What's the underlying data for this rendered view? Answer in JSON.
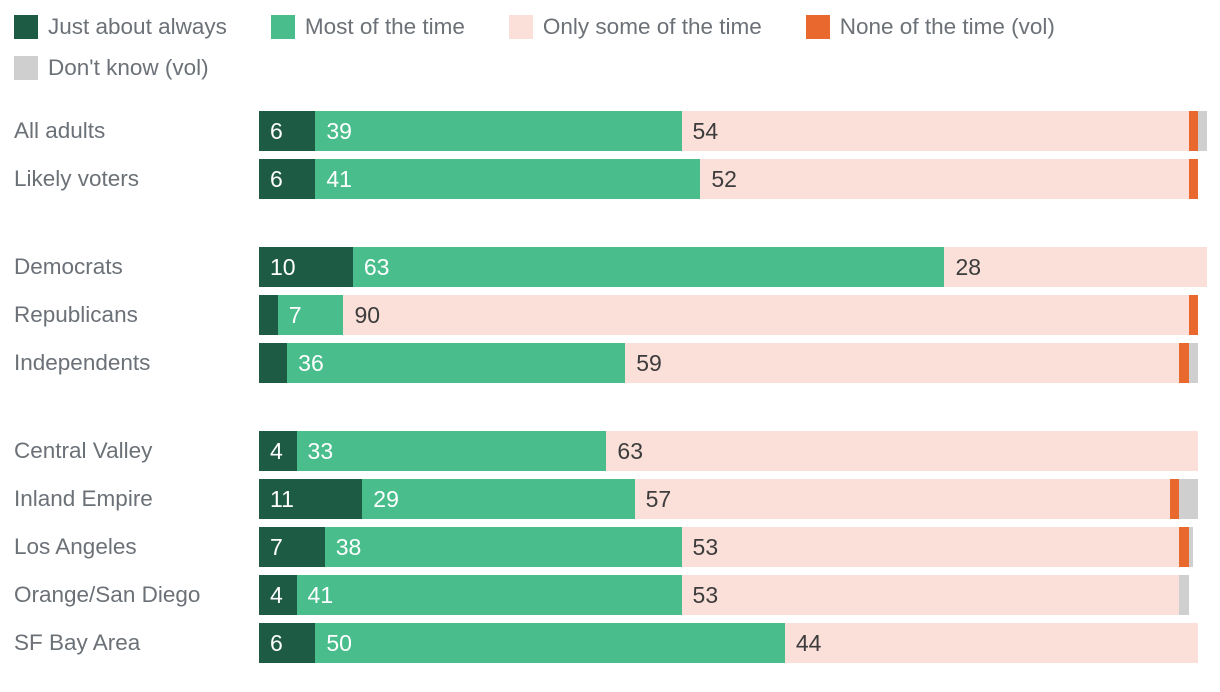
{
  "colors": {
    "always": "#1d5b44",
    "most": "#49bd8b",
    "some": "#fae0d8",
    "none": "#e8682e",
    "dk": "#cfcfcf",
    "text_muted": "#6b7177",
    "value_on_green": "#ffffff",
    "value_on_pink": "#3c3c3c"
  },
  "legend": {
    "items": [
      {
        "key": "always",
        "label": "Just about always"
      },
      {
        "key": "most",
        "label": "Most of the time"
      },
      {
        "key": "some",
        "label": "Only some of the time"
      },
      {
        "key": "none",
        "label": "None of the time (vol)"
      },
      {
        "key": "dk",
        "label": "Don't know (vol)"
      }
    ]
  },
  "chart_data": {
    "type": "bar",
    "orientation": "horizontal",
    "stacked": true,
    "unit": "percent",
    "xlim": [
      0,
      101
    ],
    "grid": false,
    "legend_position": "top",
    "series_keys": [
      "always",
      "most",
      "some",
      "none",
      "dk"
    ],
    "series_names": [
      "Just about always",
      "Most of the time",
      "Only some of the time",
      "None of the time (vol)",
      "Don't know (vol)"
    ],
    "groups": [
      {
        "name": "overall",
        "rows": [
          {
            "label": "All adults",
            "values": [
              6,
              39,
              54,
              1,
              1
            ],
            "value_labels": [
              "6",
              "39",
              "54",
              "",
              ""
            ]
          },
          {
            "label": "Likely voters",
            "values": [
              6,
              41,
              52,
              1,
              0
            ],
            "value_labels": [
              "6",
              "41",
              "52",
              "",
              ""
            ]
          }
        ]
      },
      {
        "name": "party",
        "rows": [
          {
            "label": "Democrats",
            "values": [
              10,
              63,
              28,
              0,
              0
            ],
            "value_labels": [
              "10",
              "63",
              "28",
              "",
              ""
            ]
          },
          {
            "label": "Republicans",
            "values": [
              2,
              7,
              90,
              1,
              0
            ],
            "value_labels": [
              "",
              "7",
              "90",
              "",
              ""
            ]
          },
          {
            "label": "Independents",
            "values": [
              3,
              36,
              59,
              1,
              1
            ],
            "value_labels": [
              "",
              "36",
              "59",
              "",
              ""
            ]
          }
        ]
      },
      {
        "name": "region",
        "rows": [
          {
            "label": "Central Valley",
            "values": [
              4,
              33,
              63,
              0,
              0
            ],
            "value_labels": [
              "4",
              "33",
              "63",
              "",
              ""
            ]
          },
          {
            "label": "Inland Empire",
            "values": [
              11,
              29,
              57,
              1,
              2
            ],
            "value_labels": [
              "11",
              "29",
              "57",
              "",
              ""
            ]
          },
          {
            "label": "Los Angeles",
            "values": [
              7,
              38,
              53,
              1,
              0.5
            ],
            "value_labels": [
              "7",
              "38",
              "53",
              "",
              ""
            ]
          },
          {
            "label": "Orange/San Diego",
            "values": [
              4,
              41,
              53,
              0,
              1
            ],
            "value_labels": [
              "4",
              "41",
              "53",
              "",
              ""
            ]
          },
          {
            "label": "SF Bay Area",
            "values": [
              6,
              50,
              44,
              0,
              0
            ],
            "value_labels": [
              "6",
              "50",
              "44",
              "",
              ""
            ]
          }
        ]
      }
    ]
  }
}
